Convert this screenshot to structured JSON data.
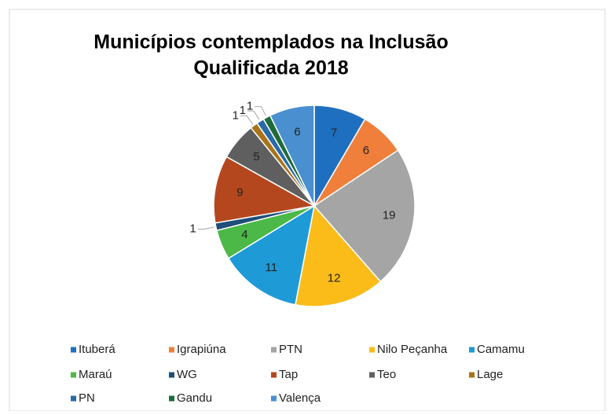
{
  "chart_data": {
    "type": "pie",
    "title_lines": [
      "Municípios contemplados na Inclusão",
      "Qualificada 2018"
    ],
    "categories": [
      "Ituberá",
      "Igrapiúna",
      "PTN",
      "Nilo Peçanha",
      "Camamu",
      "Maraú",
      "WG",
      "Tap",
      "Teo",
      "Lage",
      "PN",
      "Gandu",
      "Valença"
    ],
    "values": [
      7,
      6,
      19,
      12,
      11,
      4,
      1,
      9,
      5,
      1,
      1,
      1,
      6
    ],
    "colors": [
      "#1f6fc0",
      "#f07f3c",
      "#a5a5a5",
      "#fbbc1a",
      "#1e9ad6",
      "#4cb848",
      "#1f4e79",
      "#b5471f",
      "#5f5f5f",
      "#a8741a",
      "#2a6aa8",
      "#1e6b3a",
      "#4a8fd0"
    ],
    "legend": "bottom"
  }
}
